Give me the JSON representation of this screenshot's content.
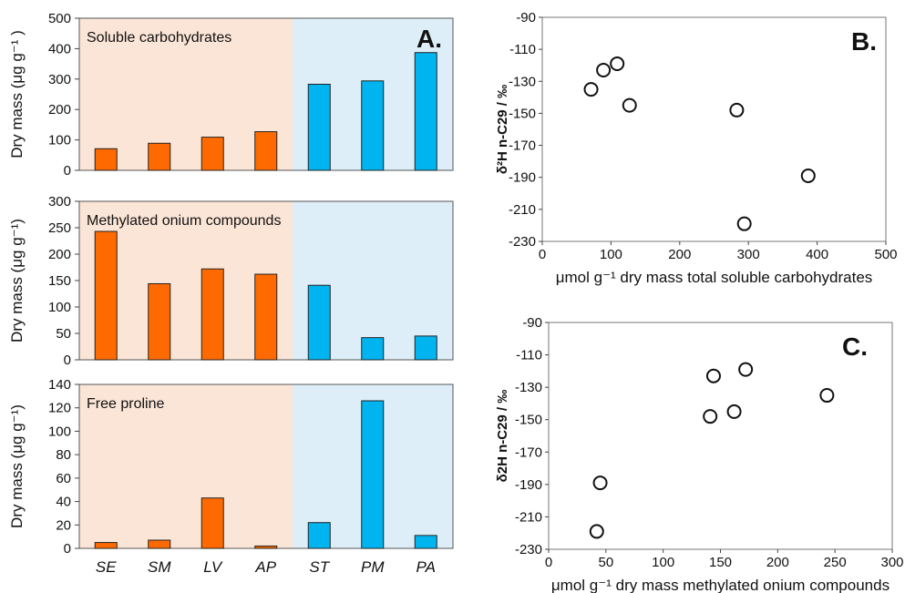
{
  "colors": {
    "orange_bar": "#ff6a00",
    "blue_bar": "#00b4f0",
    "orange_bg": "#fbe5d6",
    "blue_bg": "#ddeef8"
  },
  "chart_data": [
    {
      "type": "bar",
      "panel": "A-top",
      "title": "Soluble carbohydrates",
      "letter": "A.",
      "ylabel": "Dry mass (μg g⁻¹ )",
      "categories": [
        "SE",
        "SM",
        "LV",
        "AP",
        "ST",
        "PM",
        "PA"
      ],
      "values": [
        71,
        89,
        109,
        127,
        283,
        294,
        387
      ],
      "ylim": [
        0,
        500
      ],
      "yticks": [
        0,
        100,
        200,
        300,
        400,
        500
      ]
    },
    {
      "type": "bar",
      "panel": "A-middle",
      "title": "Methylated onium compounds",
      "ylabel": "Dry mass (μg g⁻¹)",
      "categories": [
        "SE",
        "SM",
        "LV",
        "AP",
        "ST",
        "PM",
        "PA"
      ],
      "values": [
        243,
        144,
        172,
        162,
        141,
        42,
        45
      ],
      "ylim": [
        0,
        300
      ],
      "yticks": [
        0,
        50,
        100,
        150,
        200,
        250,
        300
      ]
    },
    {
      "type": "bar",
      "panel": "A-bottom",
      "title": "Free proline",
      "ylabel": "Dry mass (μg g⁻¹)",
      "categories": [
        "SE",
        "SM",
        "LV",
        "AP",
        "ST",
        "PM",
        "PA"
      ],
      "values": [
        5,
        7,
        43,
        2,
        22,
        126,
        11
      ],
      "ylim": [
        0,
        140
      ],
      "yticks": [
        0,
        20,
        40,
        60,
        80,
        100,
        120,
        140
      ]
    },
    {
      "type": "scatter",
      "panel": "B",
      "letter": "B.",
      "xlabel": "μmol g⁻¹ dry mass total soluble carbohydrates",
      "ylabel": "δ²H n-C29 / ‰",
      "x": [
        71,
        89,
        109,
        127,
        283,
        294,
        387
      ],
      "y": [
        -135,
        -123,
        -119,
        -145,
        -148,
        -219,
        -189
      ],
      "xlim": [
        0,
        500
      ],
      "ylim": [
        -230,
        -90
      ],
      "xticks": [
        0,
        100,
        200,
        300,
        400,
        500
      ],
      "yticks": [
        -90,
        -110,
        -130,
        -150,
        -170,
        -190,
        -210,
        -230
      ]
    },
    {
      "type": "scatter",
      "panel": "C",
      "letter": "C.",
      "xlabel": "μmol g⁻¹ dry mass methylated onium compounds",
      "ylabel": "δ2H n-C29 / ‰",
      "x": [
        243,
        144,
        172,
        162,
        141,
        42,
        45
      ],
      "y": [
        -135,
        -123,
        -119,
        -145,
        -148,
        -219,
        -189
      ],
      "xlim": [
        0,
        300
      ],
      "ylim": [
        -230,
        -90
      ],
      "xticks": [
        0,
        50,
        100,
        150,
        200,
        250,
        300
      ],
      "yticks": [
        -90,
        -110,
        -130,
        -150,
        -170,
        -190,
        -210,
        -230
      ]
    }
  ]
}
